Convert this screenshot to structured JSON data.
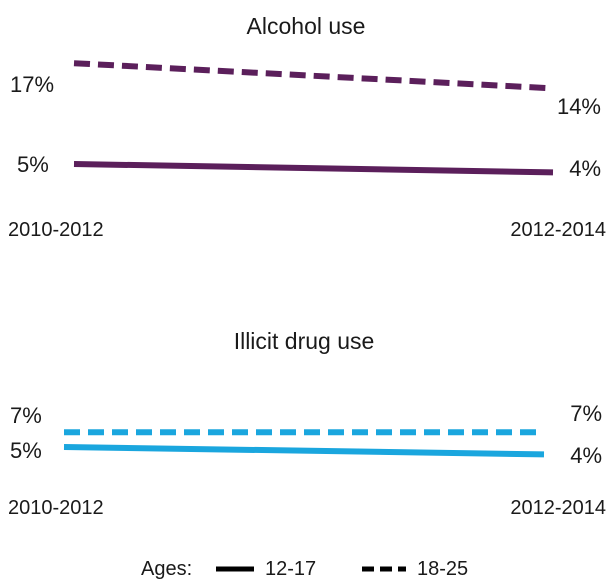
{
  "chart_data": [
    {
      "type": "line",
      "title": "Alcohol use",
      "x": [
        "2010-2012",
        "2012-2014"
      ],
      "series": [
        {
          "name": "18-25",
          "values": [
            17,
            14
          ],
          "value_labels": [
            "17%",
            "14%"
          ],
          "style": "dashed",
          "color": "#5b1f5b"
        },
        {
          "name": "12-17",
          "values": [
            5,
            4
          ],
          "value_labels": [
            "5%",
            "4%"
          ],
          "style": "solid",
          "color": "#5b1f5b"
        }
      ],
      "unit": "%"
    },
    {
      "type": "line",
      "title": "Illicit drug use",
      "x": [
        "2010-2012",
        "2012-2014"
      ],
      "series": [
        {
          "name": "18-25",
          "values": [
            7,
            7
          ],
          "value_labels": [
            "7%",
            "7%"
          ],
          "style": "dashed",
          "color": "#1aa6de"
        },
        {
          "name": "12-17",
          "values": [
            5,
            4
          ],
          "value_labels": [
            "5%",
            "4%"
          ],
          "style": "solid",
          "color": "#1aa6de"
        }
      ],
      "unit": "%"
    }
  ],
  "legend": {
    "prefix": "Ages:",
    "items": [
      {
        "label": "12-17",
        "style": "solid"
      },
      {
        "label": "18-25",
        "style": "dashed"
      }
    ],
    "color": "#000000"
  }
}
